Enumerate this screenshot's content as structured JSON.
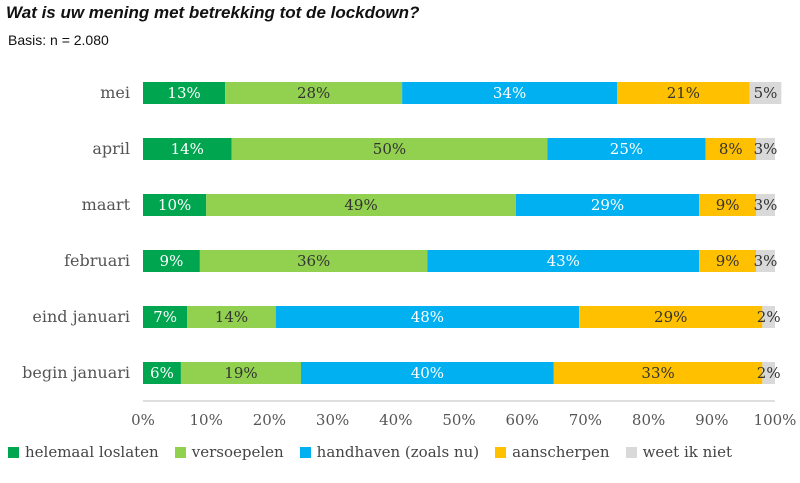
{
  "header": {
    "title": "Wat is uw mening met betrekking tot de lockdown?",
    "subtitle": "Basis: n = 2.080"
  },
  "chart_data": {
    "type": "bar",
    "orientation": "horizontal",
    "stacked": true,
    "title": "Wat is uw mening met betrekking tot de lockdown?",
    "subtitle": "Basis: n = 2.080",
    "categories": [
      "mei",
      "april",
      "maart",
      "februari",
      "eind januari",
      "begin januari"
    ],
    "series": [
      {
        "name": "helemaal loslaten",
        "color": "#00A550",
        "values": [
          13,
          14,
          10,
          9,
          7,
          6
        ],
        "labels": [
          "13%",
          "14%",
          "10%",
          "9%",
          "7%",
          "6%"
        ]
      },
      {
        "name": "versoepelen",
        "color": "#92D050",
        "values": [
          28,
          50,
          49,
          36,
          14,
          19
        ],
        "labels": [
          "28%",
          "50%",
          "49%",
          "36%",
          "14%",
          "19%"
        ]
      },
      {
        "name": "handhaven (zoals nu)",
        "color": "#00B0F0",
        "values": [
          34,
          25,
          29,
          43,
          48,
          40
        ],
        "labels": [
          "34%",
          "25%",
          "29%",
          "43%",
          "48%",
          "40%"
        ]
      },
      {
        "name": "aanscherpen",
        "color": "#FFC000",
        "values": [
          21,
          8,
          9,
          9,
          29,
          33
        ],
        "labels": [
          "21%",
          "8%",
          "9%",
          "9%",
          "29%",
          "33%"
        ]
      },
      {
        "name": "weet ik niet",
        "color": "#D9D9D9",
        "values": [
          5,
          3,
          3,
          3,
          2,
          2
        ],
        "labels": [
          "5%",
          "3%",
          "3%",
          "3%",
          "2%",
          "2%"
        ]
      }
    ],
    "xlim": [
      0,
      100
    ],
    "xticks": [
      0,
      10,
      20,
      30,
      40,
      50,
      60,
      70,
      80,
      90,
      100
    ],
    "xtick_labels": [
      "0%",
      "10%",
      "20%",
      "30%",
      "40%",
      "50%",
      "60%",
      "70%",
      "80%",
      "90%",
      "100%"
    ],
    "grid": false,
    "legend": "bottom"
  }
}
